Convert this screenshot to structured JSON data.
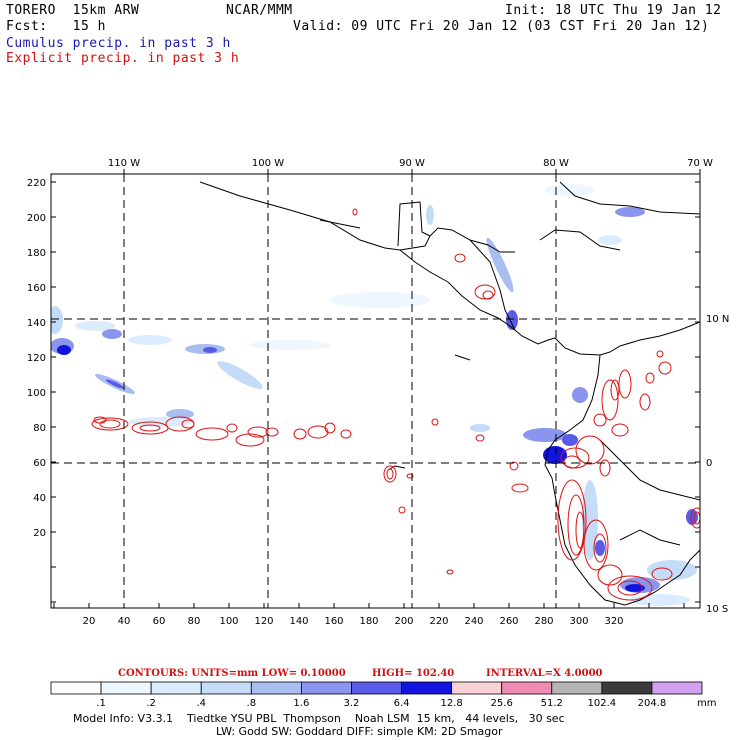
{
  "header": {
    "model": "TORERO  15km ARW",
    "org": "NCAR/MMM",
    "init": "Init: 18 UTC Thu 19 Jan 12",
    "fcst": "Fcst:   15 h",
    "valid": "Valid: 09 UTC Fri 20 Jan 12 (03 CST Fri 20 Jan 12)",
    "field1": "Cumulus precip. in past 3 h",
    "field2": "Explicit precip. in past 3 h"
  },
  "axes": {
    "top_lon_labels": [
      "110 W",
      "100 W",
      "90 W",
      "80 W",
      "70 W"
    ],
    "right_lat_labels": [
      "10 N",
      "0",
      "10 S"
    ],
    "y_ticks": [
      "220",
      "200",
      "180",
      "160",
      "140",
      "120",
      "100",
      "80",
      "60",
      "40",
      "20"
    ],
    "x_ticks": [
      "20",
      "40",
      "60",
      "80",
      "100",
      "120",
      "140",
      "160",
      "180",
      "200",
      "220",
      "240",
      "260",
      "280",
      "300",
      "320"
    ]
  },
  "contours": {
    "label": "CONTOURS:  UNITS=mm  LOW= 0.10000",
    "high": "HIGH=  102.40",
    "interval": "INTERVAL=X  4.0000"
  },
  "colorbar": {
    "labels": [
      ".1",
      ".2",
      ".4",
      ".8",
      "1.6",
      "3.2",
      "6.4",
      "12.8",
      "25.6",
      "51.2",
      "102.4",
      "204.8"
    ],
    "unit": "mm",
    "colors": [
      "#ffffff",
      "#eef6ff",
      "#dcecff",
      "#c4dcf8",
      "#a8bef0",
      "#8a96ee",
      "#5a5ae8",
      "#1414e0",
      "#f8d2d2",
      "#f08cb4",
      "#b4b4b4",
      "#3c3c3c",
      "#d2a0f0"
    ]
  },
  "footer": {
    "line1": "Model Info: V3.3.1    Tiedtke YSU PBL  Thompson    Noah LSM  15 km,   44 levels,   30 sec",
    "line2": "LW: Godd SW: Goddard DIFF: simple KM: 2D Smagor"
  }
}
